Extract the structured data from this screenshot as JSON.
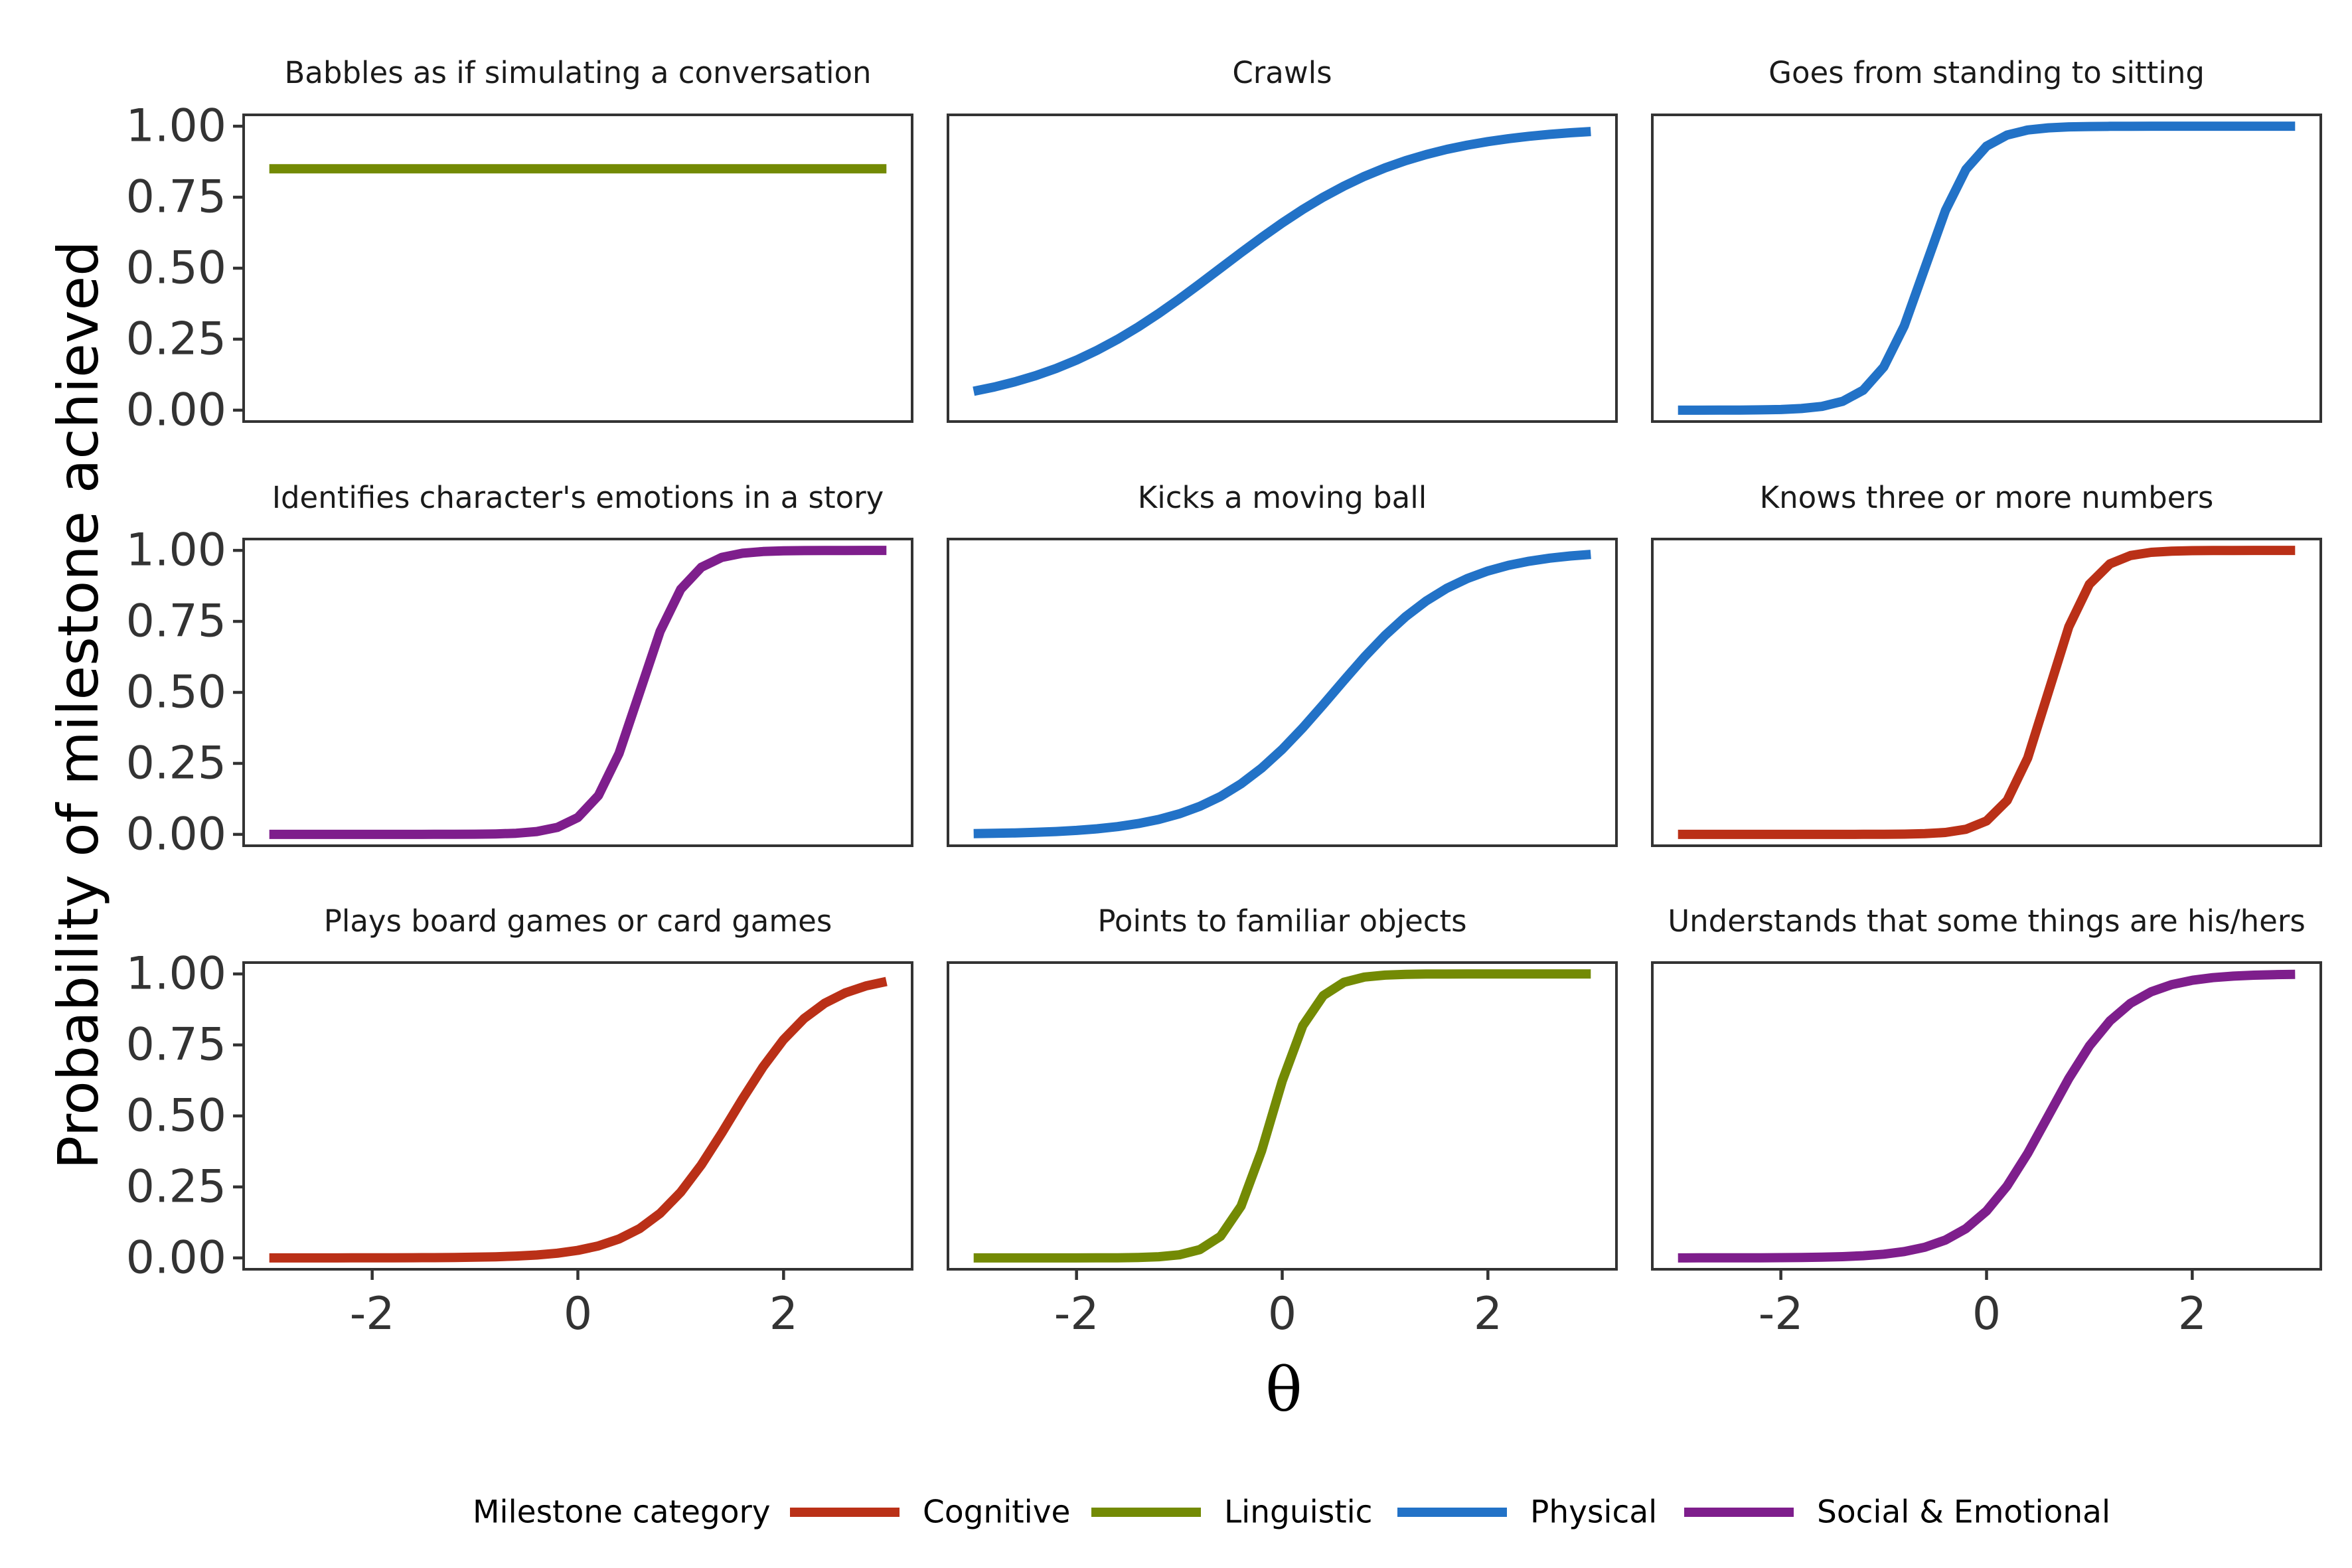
{
  "chart_data": {
    "type": "line",
    "facet_layout": {
      "rows": 3,
      "cols": 3
    },
    "xlabel": "θ",
    "ylabel": "Probability of milestone achieved",
    "xlim": [
      -3.25,
      3.25
    ],
    "ylim": [
      -0.04,
      1.04
    ],
    "x_ticks": [
      -2,
      0,
      2
    ],
    "x_tick_labels": [
      "-2",
      "0",
      "2"
    ],
    "y_ticks": [
      0,
      0.25,
      0.5,
      0.75,
      1
    ],
    "y_tick_labels": [
      "0.00",
      "0.25",
      "0.50",
      "0.75",
      "1.00"
    ],
    "grid": false,
    "legend": {
      "title": "Milestone category",
      "position": "bottom",
      "entries": [
        {
          "name": "Cognitive",
          "color": "#BA3017"
        },
        {
          "name": "Linguistic",
          "color": "#738A04"
        },
        {
          "name": "Physical",
          "color": "#2272C7"
        },
        {
          "name": "Social & Emotional",
          "color": "#7E1E8C"
        }
      ]
    },
    "x_range": [
      -3,
      3
    ],
    "panels": [
      {
        "title": "Babbles as if simulating a conversation",
        "category": "Linguistic",
        "model": {
          "type": "constant",
          "value": 0.85
        }
      },
      {
        "title": "Crawls",
        "category": "Physical",
        "model": {
          "type": "logistic",
          "a": 1.1,
          "b": -0.6
        }
      },
      {
        "title": "Goes from standing to sitting",
        "category": "Physical",
        "model": {
          "type": "logistic",
          "a": 4.3,
          "b": -0.6
        }
      },
      {
        "title": "Identifies character's emotions in a story",
        "category": "Social & Emotional",
        "model": {
          "type": "logistic",
          "a": 4.6,
          "b": 0.6
        }
      },
      {
        "title": "Kicks a moving ball",
        "category": "Physical",
        "model": {
          "type": "logistic",
          "a": 1.7,
          "b": 0.5
        }
      },
      {
        "title": "Knows three or more numbers",
        "category": "Cognitive",
        "model": {
          "type": "logistic",
          "a": 5.0,
          "b": 0.6
        }
      },
      {
        "title": "Plays board games or card games",
        "category": "Cognitive",
        "model": {
          "type": "logistic",
          "a": 2.4,
          "b": 1.5
        }
      },
      {
        "title": "Points to familiar objects",
        "category": "Linguistic",
        "model": {
          "type": "logistic",
          "a": 5.0,
          "b": -0.1
        }
      },
      {
        "title": "Understands that some things are his/hers",
        "category": "Social & Emotional",
        "model": {
          "type": "logistic",
          "a": 2.7,
          "b": 0.6
        }
      }
    ]
  }
}
